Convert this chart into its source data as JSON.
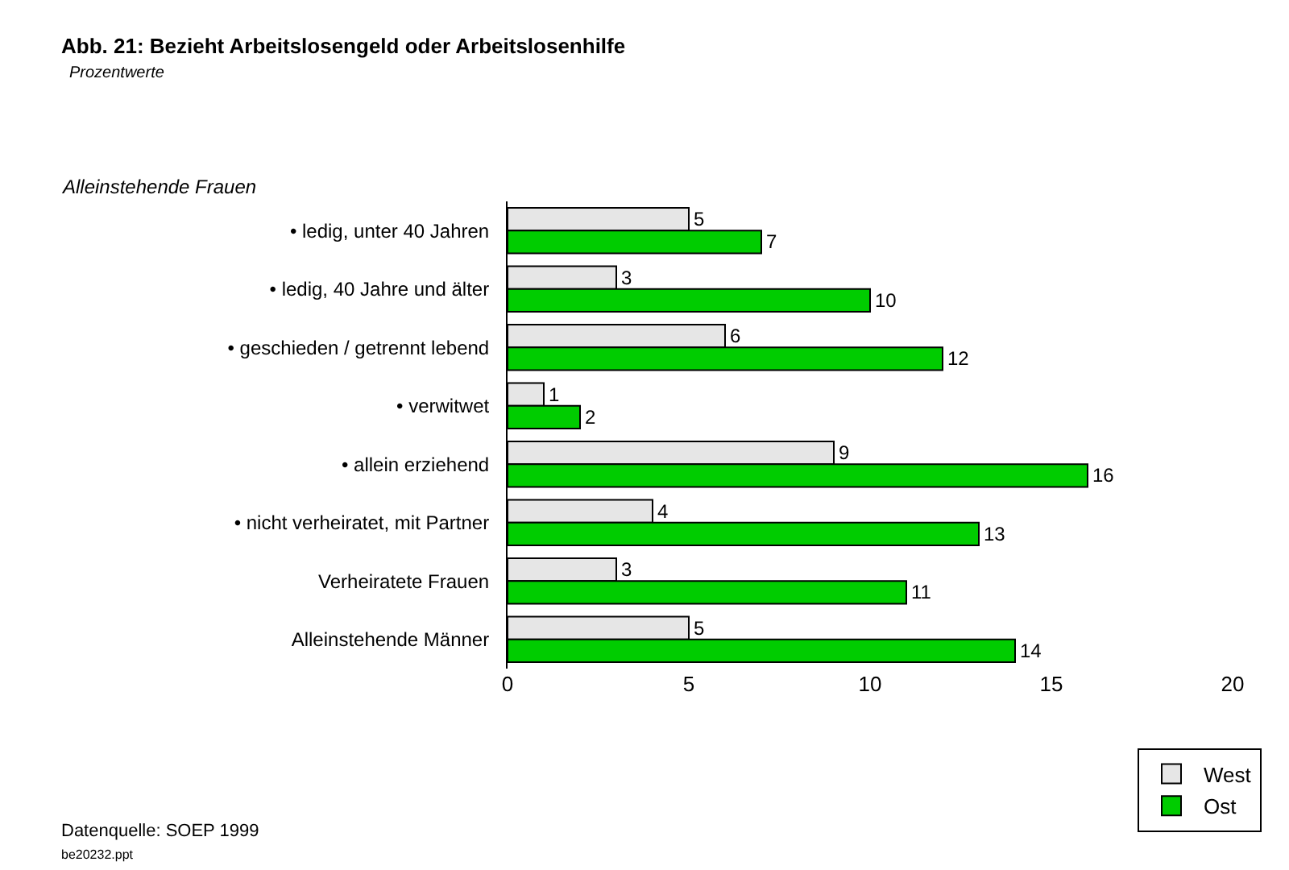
{
  "chart_data": {
    "type": "bar",
    "orientation": "horizontal",
    "title": "Abb. 21: Bezieht Arbeitslosengeld oder Arbeitslosenhilfe",
    "subtitle": "Prozentwerte",
    "categories": [
      "• ledig, unter 40 Jahren",
      "• ledig, 40 Jahre und älter",
      "• geschieden / getrennt lebend",
      "• verwitwet",
      "• allein erziehend",
      "• nicht verheiratet, mit Partner",
      "Verheiratete Frauen",
      "Alleinstehende Männer"
    ],
    "series": [
      {
        "name": "West",
        "color": "#e6e6e6",
        "values": [
          5,
          3,
          6,
          1,
          9,
          4,
          3,
          5
        ]
      },
      {
        "name": "Ost",
        "color": "#00cc00",
        "values": [
          7,
          10,
          12,
          2,
          16,
          13,
          11,
          14
        ]
      }
    ],
    "xlim": [
      0,
      20
    ],
    "xticks": [
      0,
      5,
      10,
      15,
      20
    ],
    "grid": false,
    "legend": "bottom right",
    "data_labels": true,
    "annotations": [
      "Alleinstehende Frauen",
      "Datenquelle: SOEP 1999",
      "be20232.ppt"
    ]
  }
}
